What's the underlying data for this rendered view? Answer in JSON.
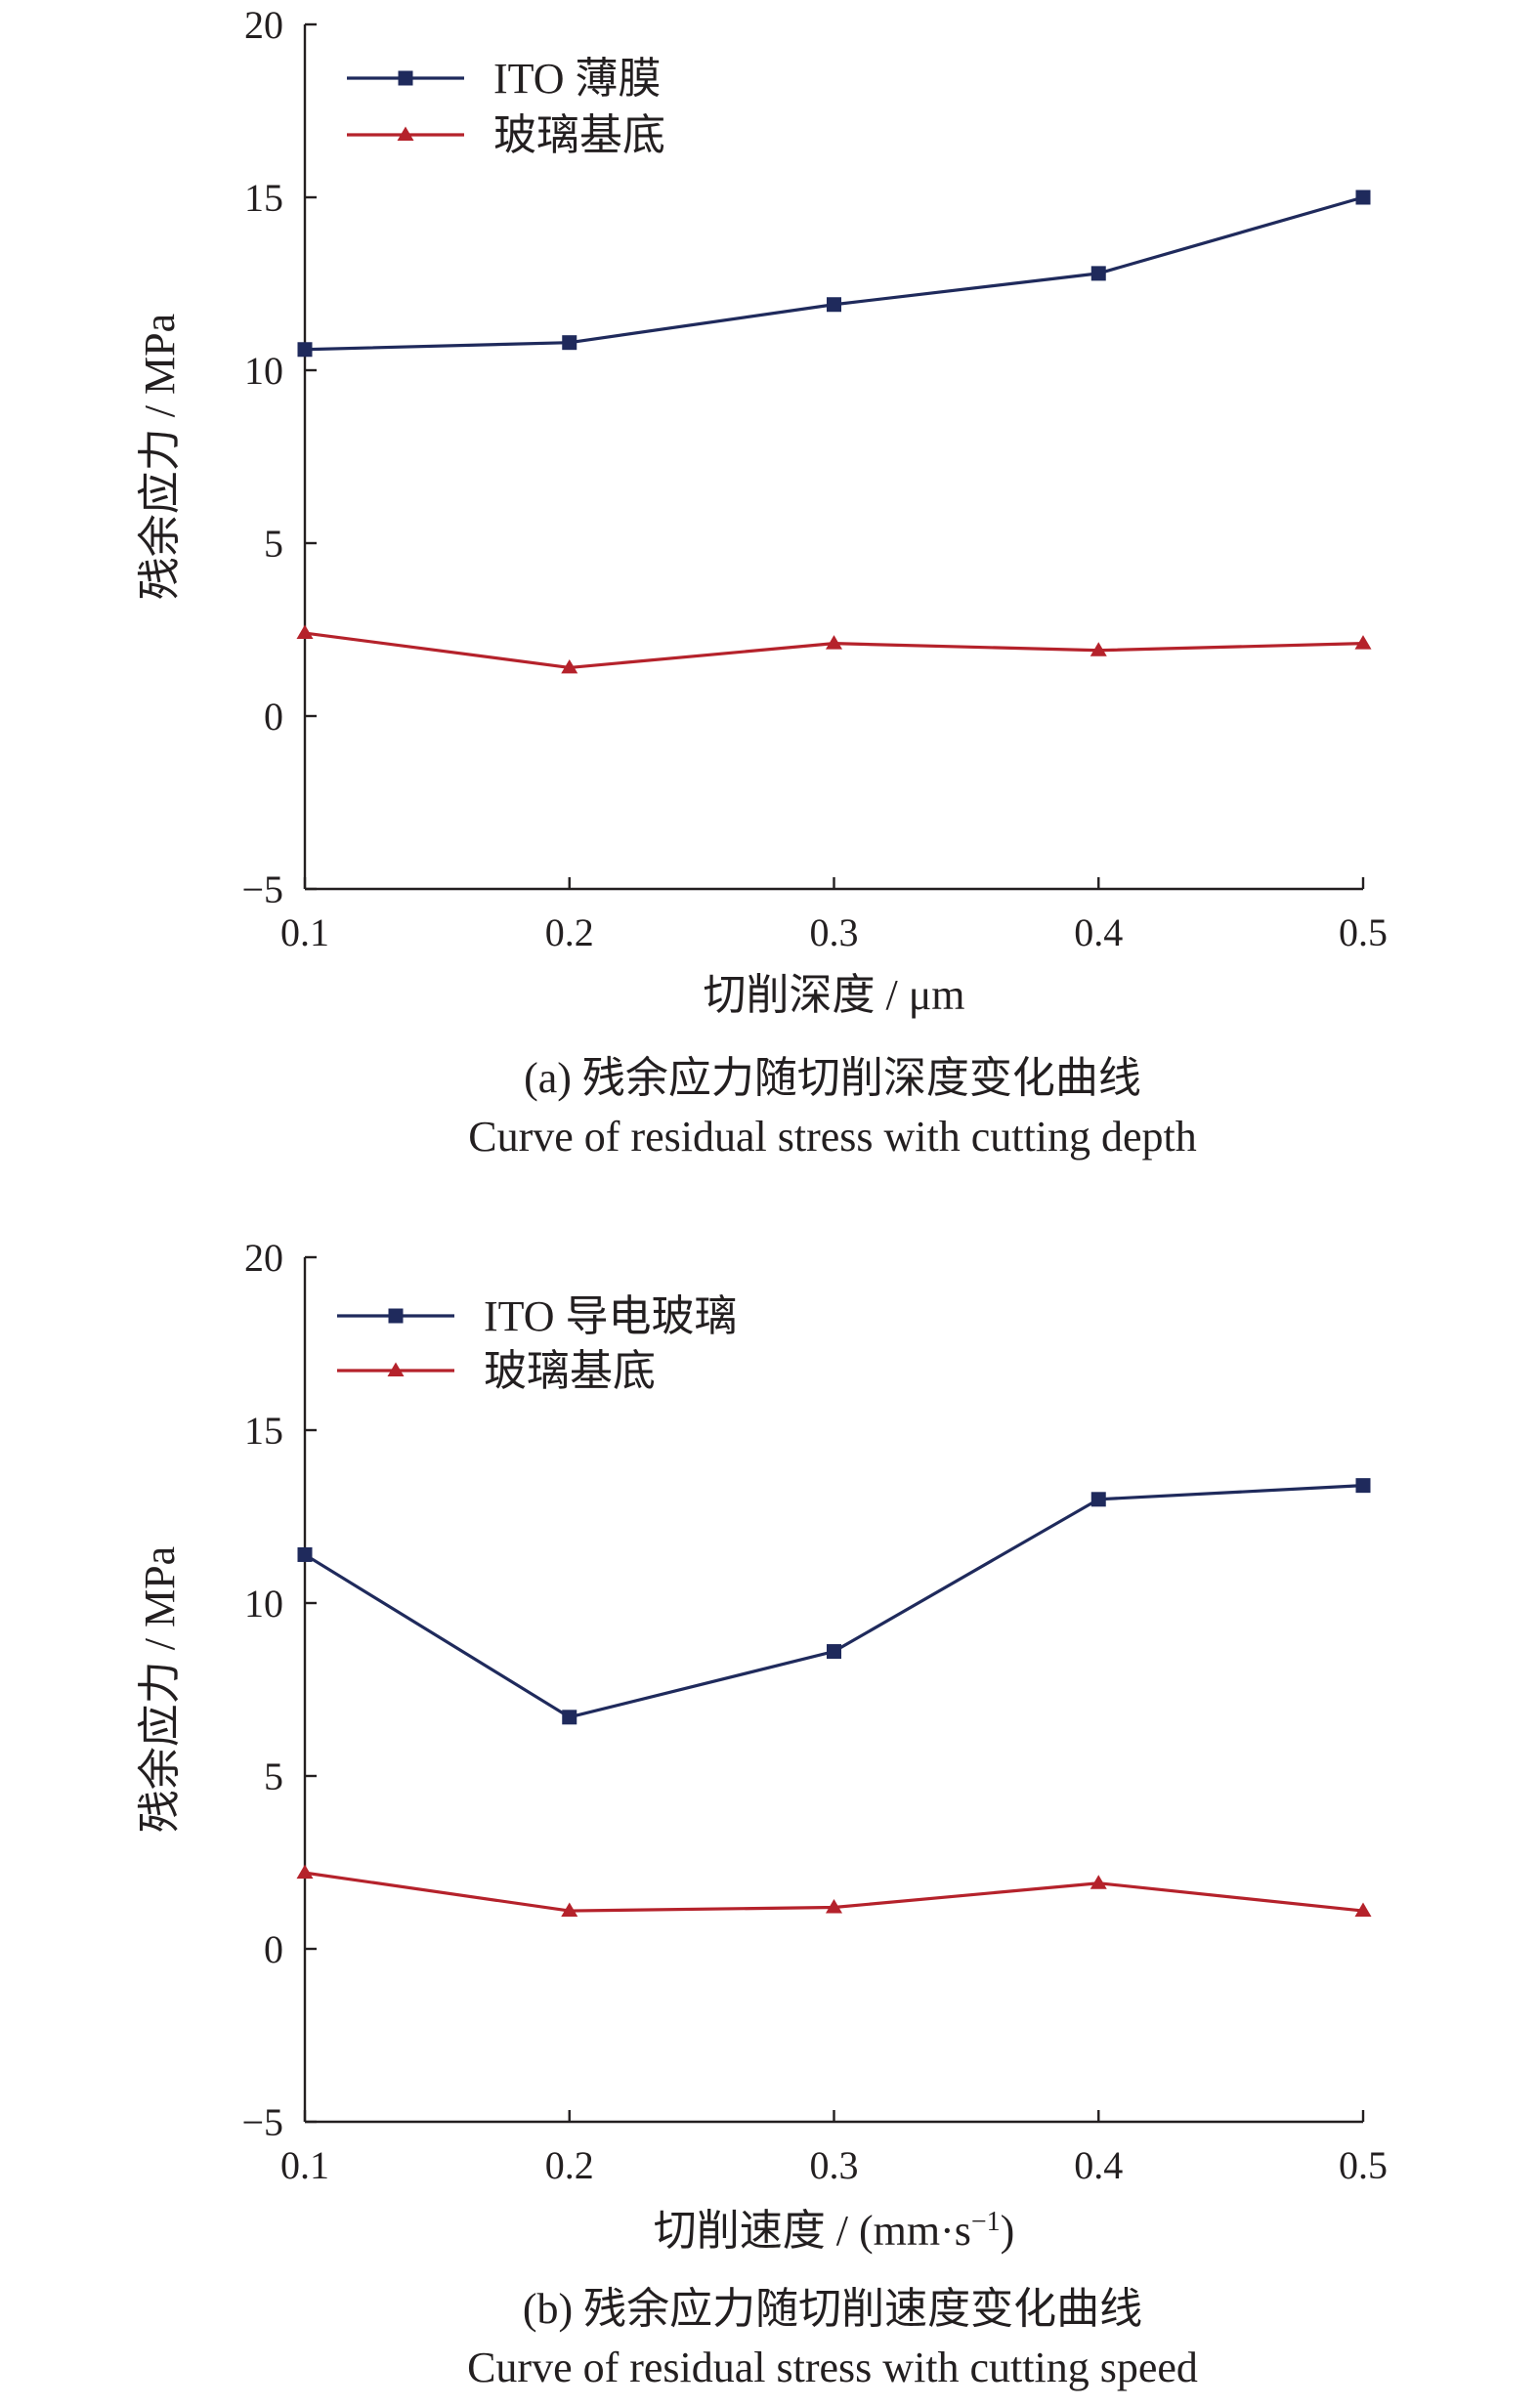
{
  "chart_data": [
    {
      "type": "line",
      "x": [
        0.1,
        0.2,
        0.3,
        0.4,
        0.5
      ],
      "xlim": [
        0.1,
        0.5
      ],
      "ylim": [
        -5,
        20
      ],
      "xticks": [
        "0.1",
        "0.2",
        "0.3",
        "0.4",
        "0.5"
      ],
      "yticks": [
        "−5",
        "0",
        "5",
        "10",
        "15",
        "20"
      ],
      "ytick_values": [
        -5,
        0,
        5,
        10,
        15,
        20
      ],
      "xlabel": "切削深度 / μm",
      "ylabel": "残余应力 / MPa",
      "legend_position": "top-left",
      "grid": false,
      "caption_cn": "(a) 残余应力随切削深度变化曲线",
      "caption_en": "Curve of residual stress with cutting depth",
      "series": [
        {
          "name": "ITO 薄膜",
          "marker": "square",
          "color": "#1f2a5c",
          "values": [
            10.6,
            10.8,
            11.9,
            12.8,
            15.0
          ]
        },
        {
          "name": "玻璃基底",
          "marker": "triangle",
          "color": "#b5222b",
          "values": [
            2.4,
            1.4,
            2.1,
            1.9,
            2.1
          ]
        }
      ]
    },
    {
      "type": "line",
      "x": [
        0.1,
        0.2,
        0.3,
        0.4,
        0.5
      ],
      "xlim": [
        0.1,
        0.5
      ],
      "ylim": [
        -5,
        20
      ],
      "xticks": [
        "0.1",
        "0.2",
        "0.3",
        "0.4",
        "0.5"
      ],
      "yticks": [
        "−5",
        "0",
        "5",
        "10",
        "15",
        "20"
      ],
      "ytick_values": [
        -5,
        0,
        5,
        10,
        15,
        20
      ],
      "xlabel": "切削速度 / (mm·s",
      "xlabel_sup": "−1",
      "xlabel_end": ")",
      "ylabel": "残余应力 / MPa",
      "legend_position": "top-left",
      "grid": false,
      "caption_cn": "(b) 残余应力随切削速度变化曲线",
      "caption_en": "Curve of residual stress with cutting speed",
      "series": [
        {
          "name": "ITO 导电玻璃",
          "marker": "square",
          "color": "#1f2a5c",
          "values": [
            11.4,
            6.7,
            8.6,
            13.0,
            13.4
          ]
        },
        {
          "name": "玻璃基底",
          "marker": "triangle",
          "color": "#b5222b",
          "values": [
            2.2,
            1.1,
            1.2,
            1.9,
            1.1
          ]
        }
      ]
    }
  ]
}
